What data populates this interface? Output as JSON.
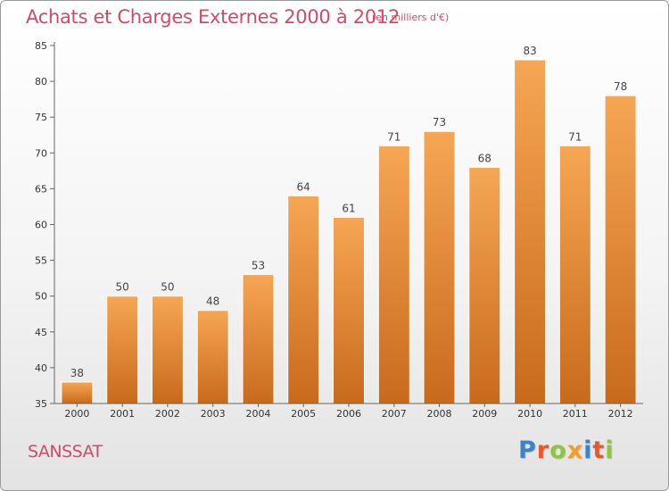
{
  "title": "Achats et Charges Externes 2000 à 2012",
  "subtitle": "(en milliers d'€)",
  "city": "SANSSAT",
  "logo": {
    "letters": [
      "P",
      "r",
      "o",
      "x",
      "i",
      "t",
      "i"
    ]
  },
  "colors": {
    "title": "#d34a68",
    "bar_top": "#f6a654",
    "bar_bottom": "#c86a1c",
    "axis": "#666666"
  },
  "chart_data": {
    "type": "bar",
    "title": "Achats et Charges Externes 2000 à 2012",
    "subtitle": "(en milliers d'€)",
    "categories": [
      "2000",
      "2001",
      "2002",
      "2003",
      "2004",
      "2005",
      "2006",
      "2007",
      "2008",
      "2009",
      "2010",
      "2011",
      "2012"
    ],
    "values": [
      38,
      50,
      50,
      48,
      53,
      64,
      61,
      71,
      73,
      68,
      83,
      71,
      78
    ],
    "data_labels": [
      "38",
      "50",
      "50",
      "48",
      "53",
      "64",
      "61",
      "71",
      "73",
      "68",
      "83",
      "71",
      "78"
    ],
    "ylim": [
      35,
      85
    ],
    "yticks": [
      35,
      40,
      45,
      50,
      55,
      60,
      65,
      70,
      75,
      80,
      85
    ],
    "ytick_labels": [
      "35",
      "40",
      "45",
      "50",
      "55",
      "60",
      "65",
      "70",
      "75",
      "80",
      "85"
    ],
    "grid": false,
    "xlabel": "",
    "ylabel": ""
  }
}
